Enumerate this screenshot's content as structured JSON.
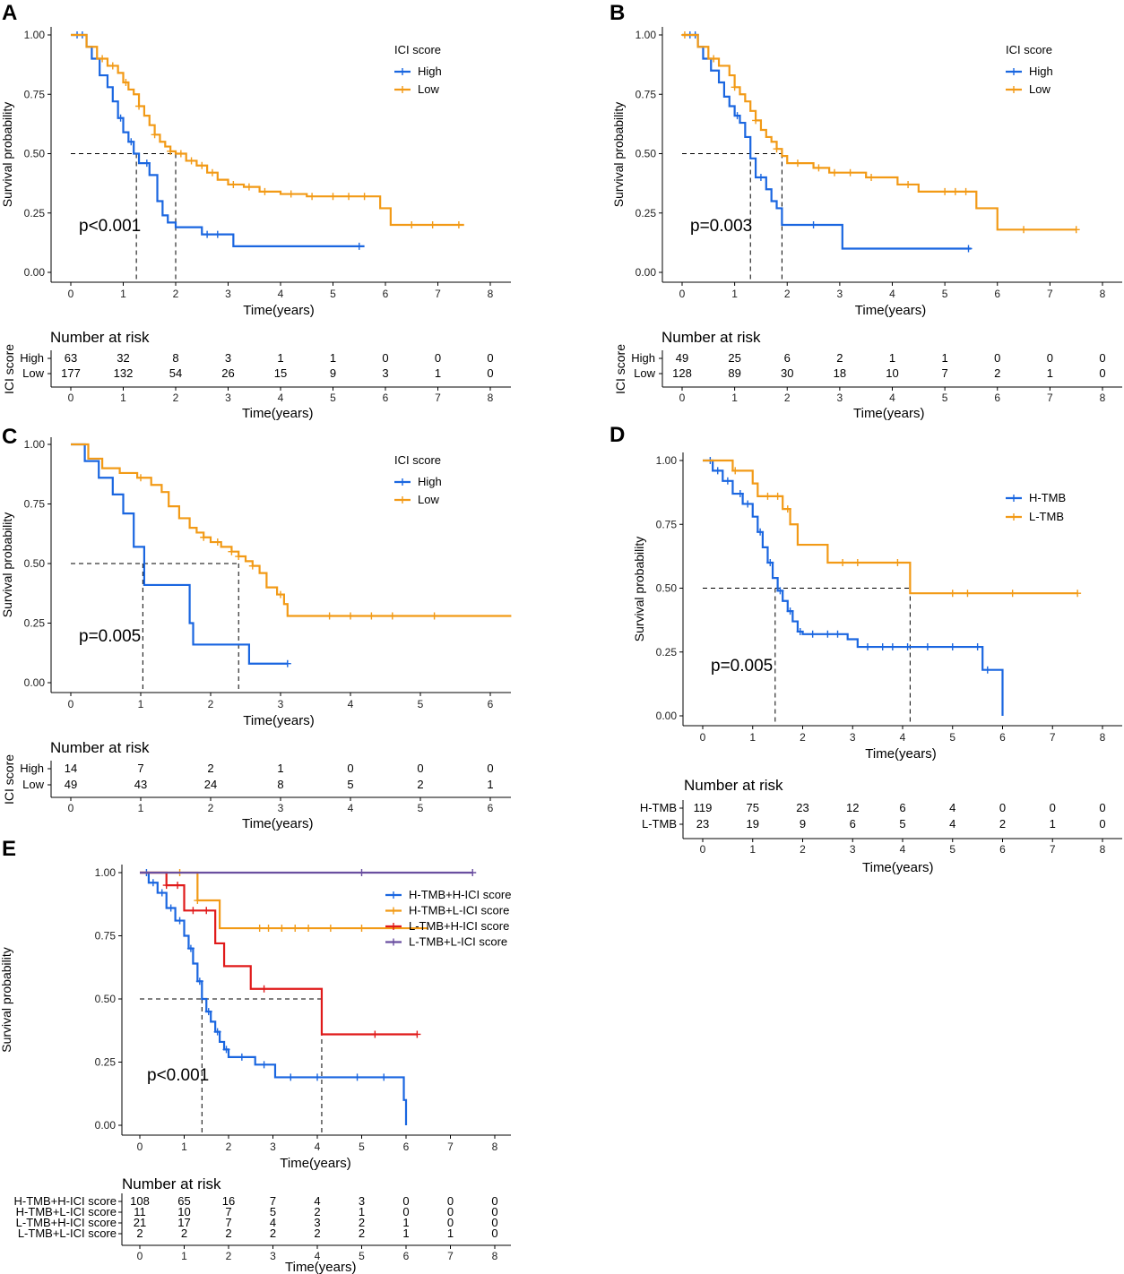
{
  "colors": {
    "high": "#1a66e0",
    "low": "#f29a16",
    "red": "#e01a1a",
    "purple": "#6a4fa0"
  },
  "chart_data": [
    {
      "panel": "A",
      "type": "line",
      "ylabel": "Survival probability",
      "xlabel": "Time(years)",
      "xlim": [
        0,
        8
      ],
      "ylim": [
        0,
        1
      ],
      "xticks": [
        "0",
        "1",
        "2",
        "3",
        "4",
        "5",
        "6",
        "7",
        "8"
      ],
      "yticks": [
        "0.00",
        "0.25",
        "0.50",
        "0.75",
        "1.00"
      ],
      "legend_title": "ICI score",
      "pvalue": "p<0.001",
      "median_lines": [
        1.25,
        2.0
      ],
      "series": [
        {
          "name": "High",
          "color": "high",
          "x": [
            0,
            0.3,
            0.4,
            0.55,
            0.7,
            0.8,
            0.9,
            1.0,
            1.1,
            1.2,
            1.3,
            1.5,
            1.65,
            1.75,
            1.85,
            2.0,
            2.5,
            3.1,
            5.6
          ],
          "y": [
            1.0,
            0.95,
            0.9,
            0.83,
            0.78,
            0.72,
            0.65,
            0.59,
            0.55,
            0.5,
            0.46,
            0.41,
            0.3,
            0.24,
            0.21,
            0.19,
            0.16,
            0.11,
            0.11
          ],
          "censor": [
            0.12,
            0.22,
            0.95,
            1.15,
            1.45,
            2.6,
            2.8,
            5.5
          ]
        },
        {
          "name": "Low",
          "color": "low",
          "x": [
            0,
            0.3,
            0.5,
            0.7,
            0.9,
            1.0,
            1.1,
            1.2,
            1.3,
            1.4,
            1.5,
            1.6,
            1.7,
            1.8,
            1.9,
            2.0,
            2.2,
            2.4,
            2.6,
            2.8,
            3.0,
            3.3,
            3.6,
            4.0,
            4.5,
            5.0,
            5.5,
            5.9,
            6.1,
            7.5
          ],
          "y": [
            1.0,
            0.95,
            0.9,
            0.87,
            0.84,
            0.8,
            0.77,
            0.75,
            0.7,
            0.66,
            0.62,
            0.58,
            0.55,
            0.53,
            0.51,
            0.5,
            0.47,
            0.45,
            0.42,
            0.39,
            0.37,
            0.36,
            0.34,
            0.33,
            0.32,
            0.32,
            0.32,
            0.27,
            0.2,
            0.2
          ],
          "censor": [
            0.6,
            0.8,
            1.05,
            1.3,
            1.6,
            1.9,
            2.1,
            2.3,
            2.5,
            2.7,
            3.1,
            3.4,
            3.7,
            4.2,
            4.6,
            5.0,
            5.3,
            5.6,
            6.5,
            6.9,
            7.4
          ]
        }
      ],
      "risk": {
        "title": "Number at risk",
        "strata_title": "ICI score",
        "rows": [
          {
            "name": "High",
            "color": "high",
            "values": [
              "63",
              "32",
              "8",
              "3",
              "1",
              "1",
              "0",
              "0",
              "0"
            ]
          },
          {
            "name": "Low",
            "color": "low",
            "values": [
              "177",
              "132",
              "54",
              "26",
              "15",
              "9",
              "3",
              "1",
              "0"
            ]
          }
        ]
      }
    },
    {
      "panel": "B",
      "type": "line",
      "ylabel": "Survival probability",
      "xlabel": "Time(years)",
      "xlim": [
        0,
        8
      ],
      "ylim": [
        0,
        1
      ],
      "xticks": [
        "0",
        "1",
        "2",
        "3",
        "4",
        "5",
        "6",
        "7",
        "8"
      ],
      "yticks": [
        "0.00",
        "0.25",
        "0.50",
        "0.75",
        "1.00"
      ],
      "legend_title": "ICI score",
      "pvalue": "p=0.003",
      "median_lines": [
        1.3,
        1.9
      ],
      "series": [
        {
          "name": "High",
          "color": "high",
          "x": [
            0,
            0.3,
            0.4,
            0.55,
            0.7,
            0.8,
            0.9,
            1.0,
            1.1,
            1.2,
            1.3,
            1.4,
            1.6,
            1.7,
            1.8,
            1.9,
            3.05,
            5.5
          ],
          "y": [
            1.0,
            0.95,
            0.9,
            0.85,
            0.8,
            0.74,
            0.7,
            0.66,
            0.63,
            0.57,
            0.48,
            0.4,
            0.35,
            0.3,
            0.27,
            0.2,
            0.1,
            0.1
          ],
          "censor": [
            0.15,
            0.25,
            1.05,
            1.5,
            2.5,
            5.45
          ]
        },
        {
          "name": "Low",
          "color": "low",
          "x": [
            0,
            0.3,
            0.5,
            0.7,
            0.9,
            1.0,
            1.1,
            1.2,
            1.3,
            1.4,
            1.5,
            1.6,
            1.7,
            1.8,
            1.9,
            2.0,
            2.5,
            2.8,
            3.5,
            4.1,
            4.5,
            5.3,
            5.6,
            6.0,
            7.5
          ],
          "y": [
            1.0,
            0.95,
            0.9,
            0.87,
            0.83,
            0.78,
            0.75,
            0.72,
            0.68,
            0.64,
            0.6,
            0.57,
            0.55,
            0.52,
            0.49,
            0.46,
            0.44,
            0.42,
            0.4,
            0.37,
            0.34,
            0.34,
            0.27,
            0.18,
            0.18
          ],
          "censor": [
            0.05,
            0.6,
            1.0,
            1.4,
            1.8,
            2.2,
            2.6,
            2.9,
            3.2,
            3.6,
            4.3,
            5.0,
            5.2,
            5.4,
            6.5,
            7.5
          ]
        }
      ],
      "risk": {
        "title": "Number at risk",
        "strata_title": "ICI score",
        "rows": [
          {
            "name": "High",
            "color": "high",
            "values": [
              "49",
              "25",
              "6",
              "2",
              "1",
              "1",
              "0",
              "0",
              "0"
            ]
          },
          {
            "name": "Low",
            "color": "low",
            "values": [
              "128",
              "89",
              "30",
              "18",
              "10",
              "7",
              "2",
              "1",
              "0"
            ]
          }
        ]
      }
    },
    {
      "panel": "C",
      "type": "line",
      "ylabel": "Survival probability",
      "xlabel": "Time(years)",
      "xlim": [
        0,
        6.3
      ],
      "ylim": [
        0,
        1
      ],
      "xticks": [
        "0",
        "1",
        "2",
        "3",
        "4",
        "5",
        "6"
      ],
      "yticks": [
        "0.00",
        "0.25",
        "0.50",
        "0.75",
        "1.00"
      ],
      "legend_title": "ICI score",
      "pvalue": "p=0.005",
      "median_lines": [
        1.03,
        2.4
      ],
      "series": [
        {
          "name": "High",
          "color": "high",
          "x": [
            0,
            0.2,
            0.4,
            0.6,
            0.75,
            0.9,
            1.05,
            1.7,
            1.75,
            2.5,
            2.55,
            3.1
          ],
          "y": [
            1.0,
            0.93,
            0.86,
            0.79,
            0.71,
            0.57,
            0.41,
            0.25,
            0.16,
            0.16,
            0.08,
            0.08
          ],
          "censor": [
            3.1
          ]
        },
        {
          "name": "Low",
          "color": "low",
          "x": [
            0,
            0.25,
            0.45,
            0.7,
            0.95,
            1.15,
            1.3,
            1.4,
            1.55,
            1.7,
            1.8,
            1.9,
            2.0,
            2.15,
            2.3,
            2.4,
            2.5,
            2.6,
            2.7,
            2.8,
            2.95,
            3.05,
            3.1,
            6.3
          ],
          "y": [
            1.0,
            0.94,
            0.9,
            0.88,
            0.86,
            0.83,
            0.8,
            0.74,
            0.69,
            0.65,
            0.63,
            0.61,
            0.59,
            0.57,
            0.55,
            0.53,
            0.51,
            0.49,
            0.46,
            0.4,
            0.37,
            0.33,
            0.28,
            0.28
          ],
          "censor": [
            1.0,
            1.9,
            2.1,
            2.3,
            2.4,
            2.6,
            3.0,
            3.7,
            4.0,
            4.3,
            4.6,
            5.2
          ]
        }
      ],
      "risk": {
        "title": "Number at risk",
        "strata_title": "ICI score",
        "rows": [
          {
            "name": "High",
            "color": "high",
            "values": [
              "14",
              "7",
              "2",
              "1",
              "0",
              "0",
              "0"
            ]
          },
          {
            "name": "Low",
            "color": "low",
            "values": [
              "49",
              "43",
              "24",
              "8",
              "5",
              "2",
              "1"
            ]
          }
        ]
      }
    },
    {
      "panel": "D",
      "type": "line",
      "ylabel": "Survival probability",
      "xlabel": "Time(years)",
      "xlim": [
        0,
        8
      ],
      "ylim": [
        0,
        1
      ],
      "xticks": [
        "0",
        "1",
        "2",
        "3",
        "4",
        "5",
        "6",
        "7",
        "8"
      ],
      "yticks": [
        "0.00",
        "0.25",
        "0.50",
        "0.75",
        "1.00"
      ],
      "legend_title": "",
      "pvalue": "p=0.005",
      "median_lines": [
        1.45,
        4.15
      ],
      "series": [
        {
          "name": "H-TMB",
          "color": "high",
          "x": [
            0,
            0.2,
            0.4,
            0.6,
            0.8,
            1.0,
            1.1,
            1.2,
            1.3,
            1.4,
            1.5,
            1.6,
            1.7,
            1.8,
            1.9,
            2.0,
            2.9,
            3.1,
            5.5,
            5.6,
            6.0
          ],
          "y": [
            1.0,
            0.96,
            0.92,
            0.87,
            0.83,
            0.78,
            0.72,
            0.66,
            0.6,
            0.54,
            0.49,
            0.45,
            0.41,
            0.37,
            0.33,
            0.32,
            0.3,
            0.27,
            0.27,
            0.18,
            0.0
          ],
          "censor": [
            0.15,
            0.3,
            0.5,
            0.75,
            0.9,
            1.15,
            1.35,
            1.55,
            1.75,
            1.95,
            2.2,
            2.5,
            2.7,
            3.3,
            3.6,
            3.8,
            4.1,
            4.5,
            5.0,
            5.5,
            5.7
          ]
        },
        {
          "name": "L-TMB",
          "color": "low",
          "x": [
            0,
            0.6,
            1.0,
            1.1,
            1.6,
            1.75,
            1.9,
            2.5,
            4.15,
            7.5
          ],
          "y": [
            1.0,
            0.96,
            0.91,
            0.86,
            0.81,
            0.75,
            0.67,
            0.6,
            0.48,
            0.48
          ],
          "censor": [
            0.65,
            1.3,
            1.5,
            1.7,
            2.8,
            3.1,
            3.9,
            5.0,
            5.3,
            6.2,
            7.5
          ]
        }
      ],
      "risk": {
        "title": "Number at risk",
        "strata_title": "",
        "rows": [
          {
            "name": "H-TMB",
            "color": "high",
            "values": [
              "119",
              "75",
              "23",
              "12",
              "6",
              "4",
              "0",
              "0",
              "0"
            ]
          },
          {
            "name": "L-TMB",
            "color": "low",
            "values": [
              "23",
              "19",
              "9",
              "6",
              "5",
              "4",
              "2",
              "1",
              "0"
            ]
          }
        ]
      }
    },
    {
      "panel": "E",
      "type": "line",
      "ylabel": "Survival probability",
      "xlabel": "Time(years)",
      "xlim": [
        0,
        8
      ],
      "ylim": [
        0,
        1
      ],
      "xticks": [
        "0",
        "1",
        "2",
        "3",
        "4",
        "5",
        "6",
        "7",
        "8"
      ],
      "yticks": [
        "0.00",
        "0.25",
        "0.50",
        "0.75",
        "1.00"
      ],
      "legend_title": "",
      "pvalue": "p<0.001",
      "median_lines": [
        1.4,
        4.1
      ],
      "series": [
        {
          "name": "H-TMB+H-ICI score",
          "color": "high",
          "x": [
            0,
            0.2,
            0.4,
            0.6,
            0.8,
            1.0,
            1.1,
            1.2,
            1.3,
            1.4,
            1.5,
            1.6,
            1.7,
            1.8,
            1.9,
            2.0,
            2.6,
            3.05,
            5.55,
            5.95,
            6.0
          ],
          "y": [
            1.0,
            0.96,
            0.92,
            0.86,
            0.81,
            0.75,
            0.7,
            0.64,
            0.57,
            0.5,
            0.45,
            0.41,
            0.37,
            0.33,
            0.3,
            0.27,
            0.24,
            0.19,
            0.19,
            0.1,
            0.0
          ],
          "censor": [
            0.15,
            0.3,
            0.5,
            0.7,
            0.9,
            1.15,
            1.35,
            1.55,
            1.75,
            1.95,
            2.3,
            2.8,
            3.4,
            4.0,
            4.9,
            5.5
          ]
        },
        {
          "name": "H-TMB+L-ICI score",
          "color": "low",
          "x": [
            0,
            1.3,
            1.8,
            6.5
          ],
          "y": [
            1.0,
            0.89,
            0.78,
            0.78
          ],
          "censor": [
            0.9,
            1.3,
            2.7,
            2.9,
            3.2,
            3.5,
            3.8,
            4.3,
            5.0
          ]
        },
        {
          "name": "L-TMB+H-ICI score",
          "color": "red",
          "x": [
            0,
            0.6,
            1.0,
            1.7,
            1.9,
            2.5,
            4.1,
            6.25
          ],
          "y": [
            1.0,
            0.95,
            0.85,
            0.72,
            0.63,
            0.54,
            0.36,
            0.36
          ],
          "censor": [
            0.6,
            0.85,
            1.2,
            1.5,
            2.8,
            5.3,
            6.25
          ]
        },
        {
          "name": "L-TMB+L-ICI score",
          "color": "purple",
          "x": [
            0,
            7.5
          ],
          "y": [
            1.0,
            1.0
          ],
          "censor": [
            5.0,
            7.5
          ]
        }
      ],
      "risk": {
        "title": "Number at risk",
        "strata_title": "",
        "rows": [
          {
            "name": "H-TMB+H-ICI score",
            "color": "high",
            "values": [
              "108",
              "65",
              "16",
              "7",
              "4",
              "3",
              "0",
              "0",
              "0"
            ]
          },
          {
            "name": "H-TMB+L-ICI score",
            "color": "low",
            "values": [
              "11",
              "10",
              "7",
              "5",
              "2",
              "1",
              "0",
              "0",
              "0"
            ]
          },
          {
            "name": "L-TMB+H-ICI score",
            "color": "red",
            "values": [
              "21",
              "17",
              "7",
              "4",
              "3",
              "2",
              "1",
              "0",
              "0"
            ]
          },
          {
            "name": "L-TMB+L-ICI score",
            "color": "purple",
            "values": [
              "2",
              "2",
              "2",
              "2",
              "2",
              "2",
              "1",
              "1",
              "0"
            ]
          }
        ]
      }
    }
  ]
}
